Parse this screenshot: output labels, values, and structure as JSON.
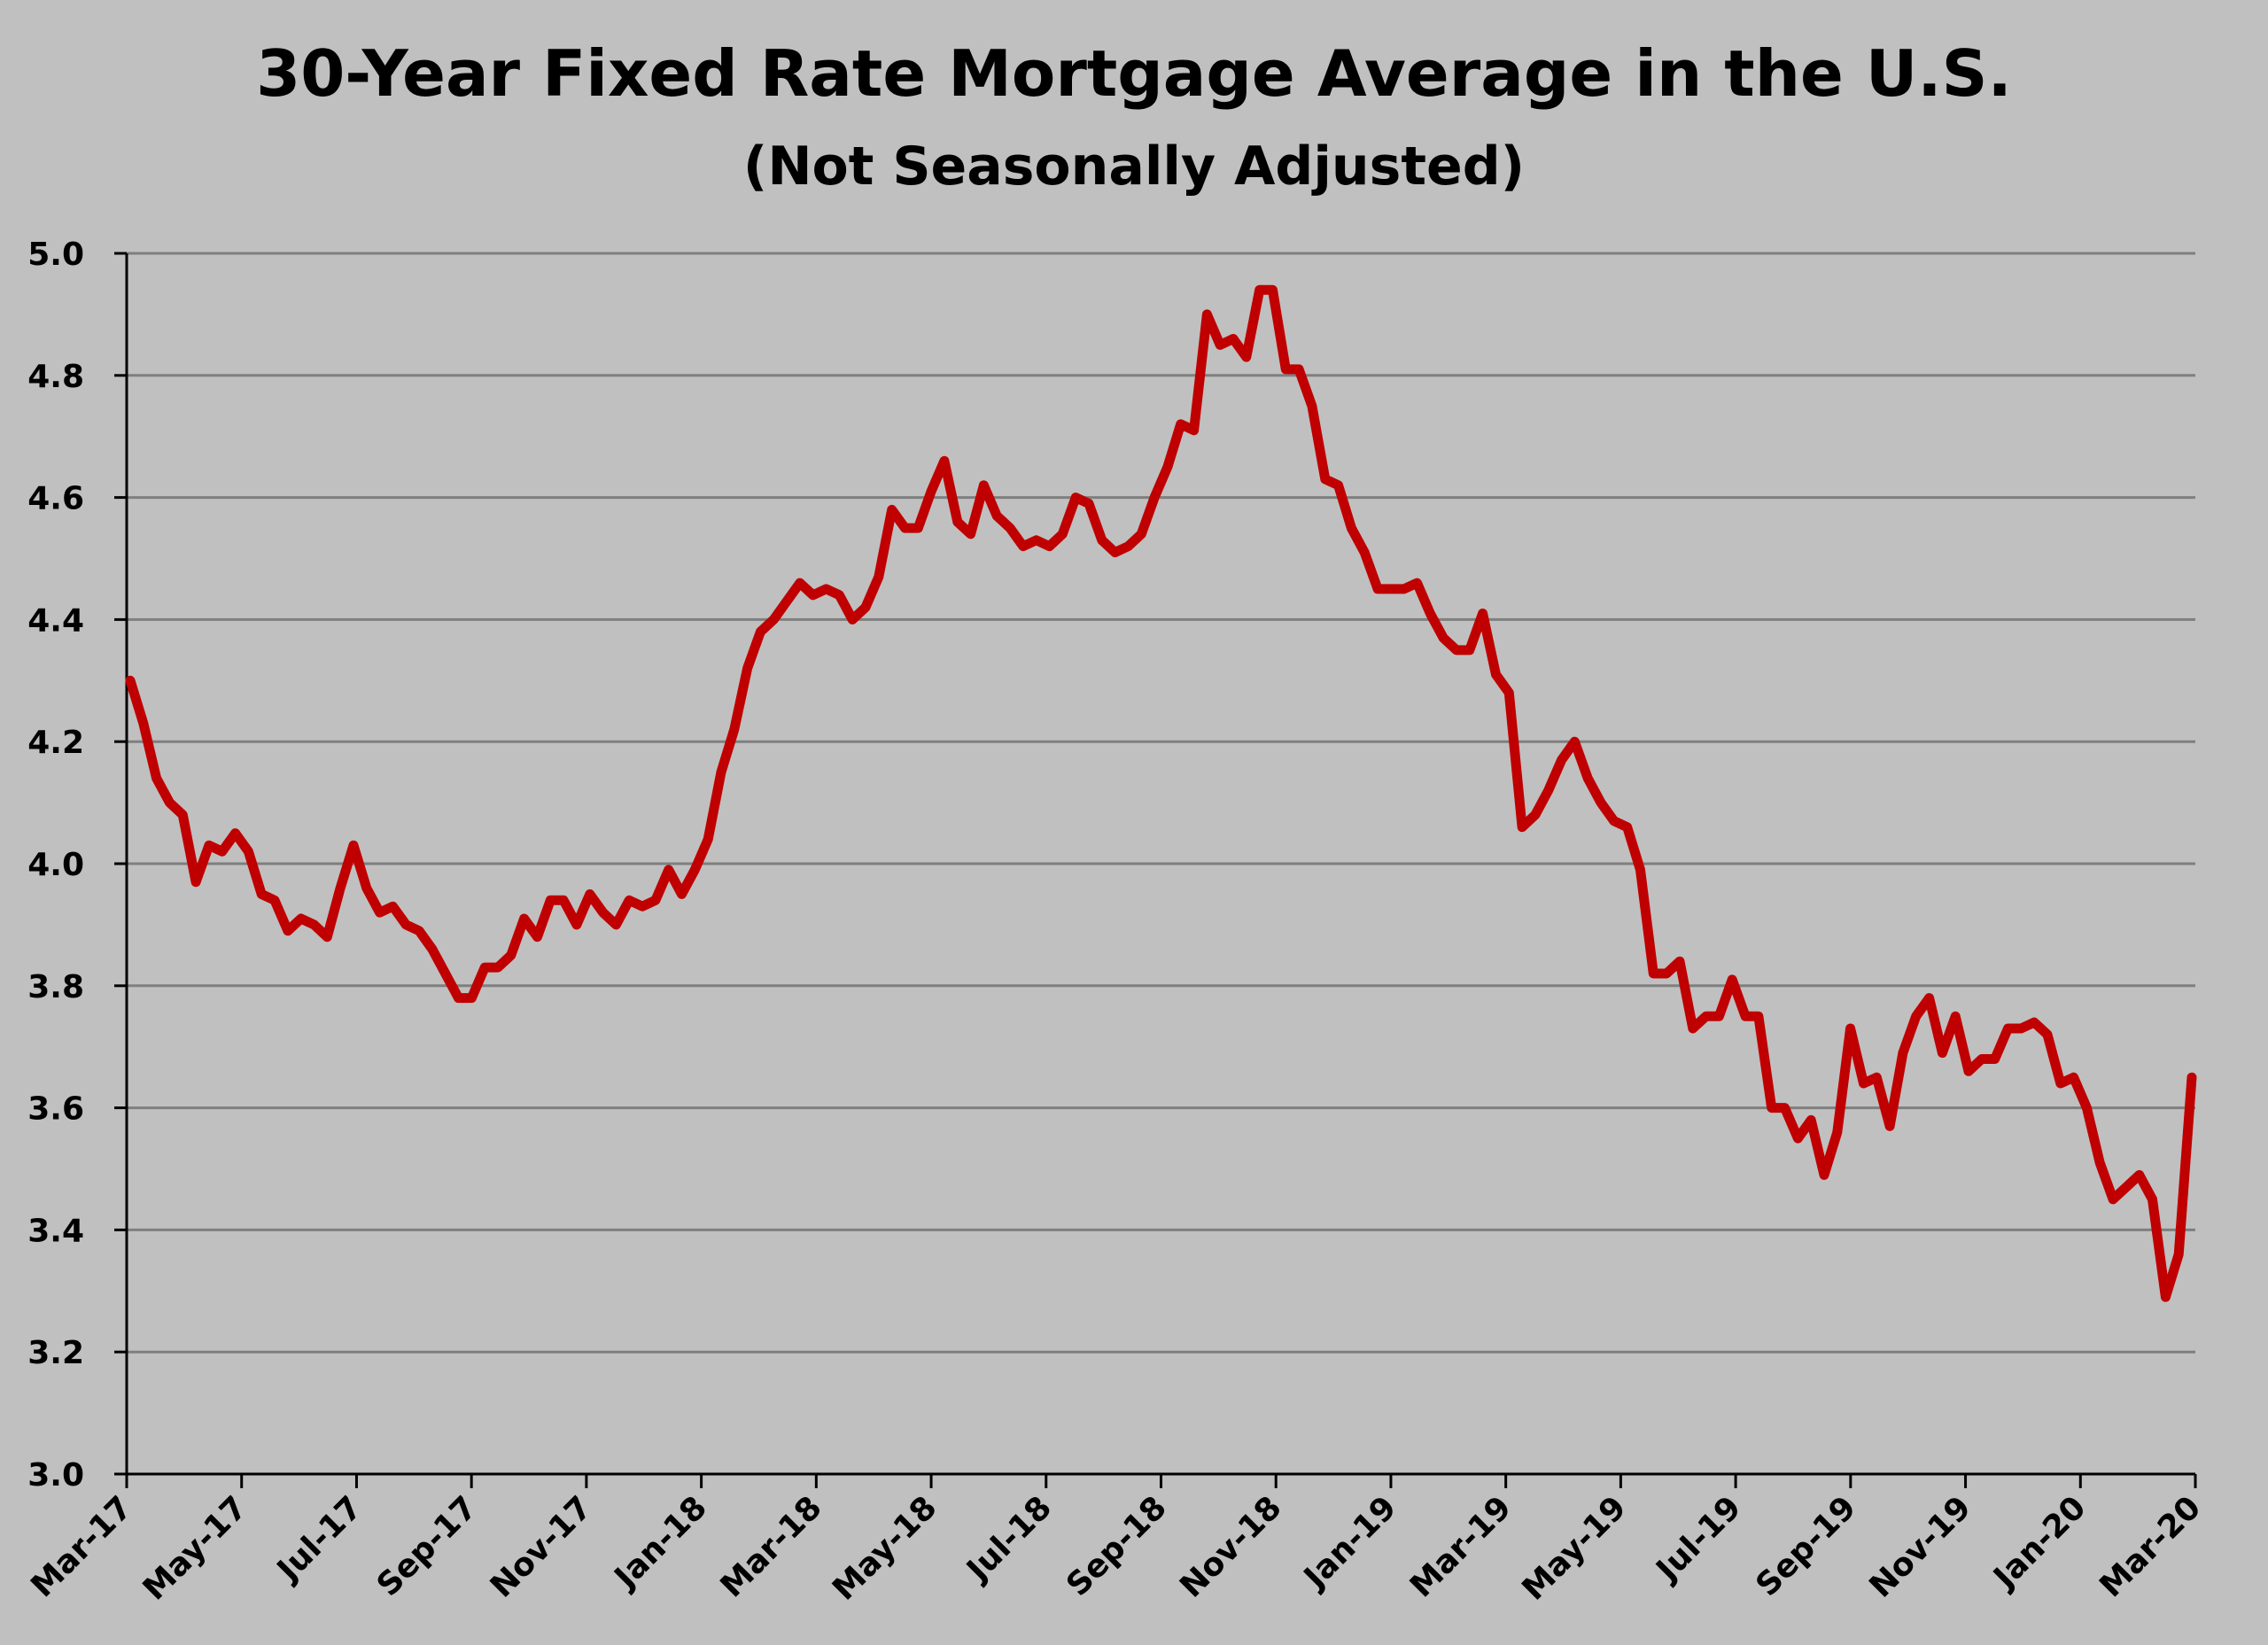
{
  "chart_data": {
    "type": "line",
    "title": "30-Year Fixed Rate Mortgage Average in the U.S.",
    "subtitle": "(Not Seasonally Adjusted)",
    "xlabel": "",
    "ylabel": "",
    "ylim": [
      3.0,
      5.0
    ],
    "y_ticks": [
      "3.0",
      "3.2",
      "3.4",
      "3.6",
      "3.8",
      "4.0",
      "4.2",
      "4.4",
      "4.6",
      "4.8",
      "5.0"
    ],
    "x_tick_labels": [
      "Mar-17",
      "May-17",
      "Jul-17",
      "Sep-17",
      "Nov-17",
      "Jan-18",
      "Mar-18",
      "May-18",
      "Jul-18",
      "Sep-18",
      "Nov-18",
      "Jan-19",
      "Mar-19",
      "May-19",
      "Jul-19",
      "Sep-19",
      "Nov-19",
      "Jan-20",
      "Mar-20"
    ],
    "grid": true,
    "legend": "none",
    "line_color": "#c00000",
    "series": [
      {
        "frequency": "weekly",
        "values": [
          4.3,
          4.23,
          4.14,
          4.1,
          4.08,
          3.97,
          4.03,
          4.02,
          4.05,
          4.02,
          3.95,
          3.94,
          3.89,
          3.91,
          3.9,
          3.88,
          3.96,
          4.03,
          3.96,
          3.92,
          3.93,
          3.9,
          3.89,
          3.86,
          3.82,
          3.78,
          3.78,
          3.83,
          3.83,
          3.85,
          3.91,
          3.88,
          3.94,
          3.94,
          3.9,
          3.95,
          3.92,
          3.9,
          3.94,
          3.93,
          3.94,
          3.99,
          3.95,
          3.99,
          4.04,
          4.15,
          4.22,
          4.32,
          4.38,
          4.4,
          4.43,
          4.46,
          4.44,
          4.45,
          4.44,
          4.4,
          4.42,
          4.47,
          4.58,
          4.55,
          4.55,
          4.61,
          4.66,
          4.56,
          4.54,
          4.62,
          4.57,
          4.55,
          4.52,
          4.53,
          4.52,
          4.54,
          4.6,
          4.59,
          4.53,
          4.51,
          4.52,
          4.54,
          4.6,
          4.65,
          4.72,
          4.71,
          4.9,
          4.85,
          4.86,
          4.83,
          4.94,
          4.94,
          4.81,
          4.81,
          4.75,
          4.63,
          4.62,
          4.55,
          4.51,
          4.45,
          4.45,
          4.45,
          4.46,
          4.41,
          4.37,
          4.35,
          4.35,
          4.41,
          4.31,
          4.28,
          4.06,
          4.08,
          4.12,
          4.17,
          4.2,
          4.14,
          4.1,
          4.07,
          4.06,
          3.99,
          3.82,
          3.82,
          3.84,
          3.73,
          3.75,
          3.75,
          3.81,
          3.75,
          3.75,
          3.6,
          3.6,
          3.55,
          3.58,
          3.49,
          3.56,
          3.73,
          3.64,
          3.65,
          3.57,
          3.69,
          3.75,
          3.78,
          3.69,
          3.75,
          3.66,
          3.68,
          3.68,
          3.73,
          3.73,
          3.74,
          3.72,
          3.64,
          3.65,
          3.6,
          3.51,
          3.45,
          3.47,
          3.49,
          3.45,
          3.29,
          3.36,
          3.65
        ]
      }
    ]
  }
}
